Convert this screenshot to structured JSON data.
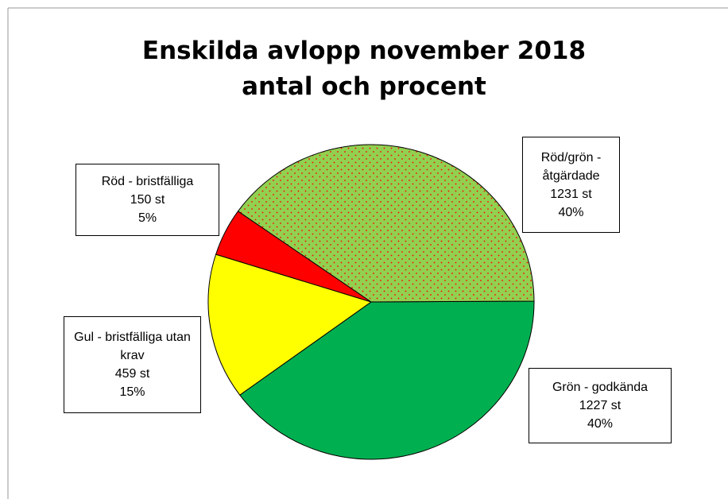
{
  "chart_data": {
    "type": "pie",
    "title": [
      "Enskilda avlopp november 2018",
      "antal och procent"
    ],
    "categories": [
      "Grön - godkända",
      "Gul - bristfälliga utan krav",
      "Röd - bristfälliga",
      "Röd/grön - åtgärdade"
    ],
    "values": [
      1227,
      459,
      150,
      1231
    ],
    "value_labels": [
      "1227 st",
      "459 st",
      "150 st",
      "1231 st"
    ],
    "percent_labels": [
      "40%",
      "15%",
      "5%",
      "40%"
    ],
    "colors": [
      "#00b050",
      "#ffff00",
      "#ff0000",
      "#92d050"
    ],
    "patterns": [
      null,
      null,
      null,
      "dots"
    ],
    "pattern_color": "#ff0000"
  }
}
